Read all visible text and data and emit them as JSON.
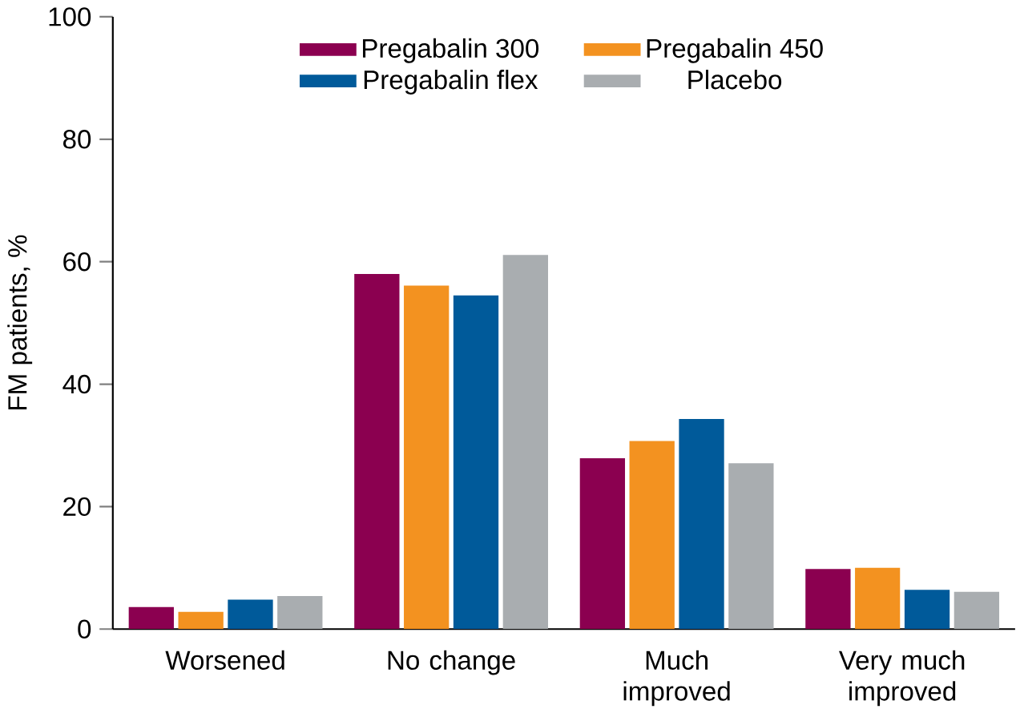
{
  "chart_data": {
    "type": "bar",
    "ylabel": "FM patients, %",
    "categories": [
      "Worsened",
      "No change",
      "Much improved",
      "Very much improved"
    ],
    "series": [
      {
        "name": "Pregabalin 300",
        "color": "#8b0050",
        "values": [
          3.6,
          58.0,
          27.9,
          9.8
        ]
      },
      {
        "name": "Pregabalin 450",
        "color": "#f39220",
        "values": [
          2.8,
          56.1,
          30.7,
          10.0
        ]
      },
      {
        "name": "Pregabalin flex",
        "color": "#005a9a",
        "values": [
          4.8,
          54.5,
          34.3,
          6.4
        ]
      },
      {
        "name": "Placebo",
        "color": "#a9adb0",
        "values": [
          5.4,
          61.1,
          27.1,
          6.1
        ]
      }
    ],
    "ylim": [
      0,
      100
    ],
    "yticks": [
      0,
      20,
      40,
      60,
      80,
      100
    ],
    "grid": false,
    "legend": "top"
  }
}
